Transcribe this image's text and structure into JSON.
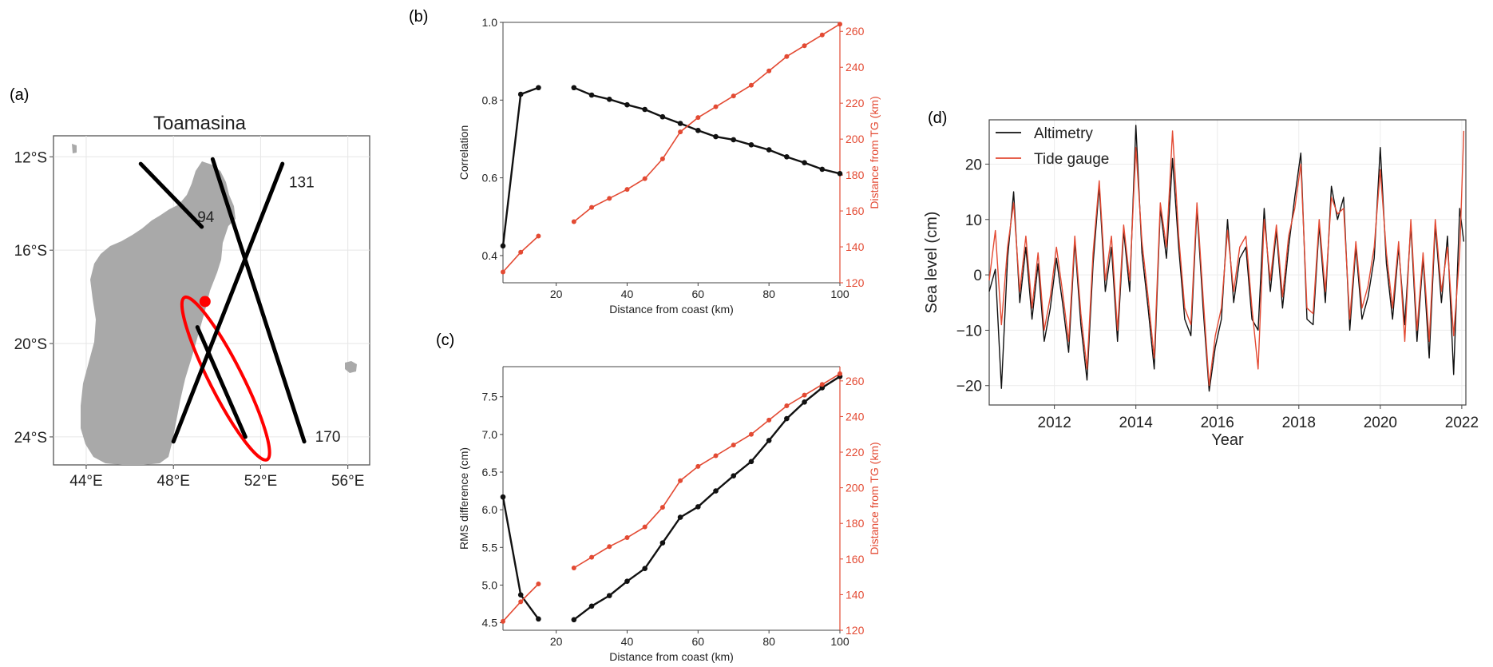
{
  "panel_labels": {
    "a": "(a)",
    "b": "(b)",
    "c": "(c)",
    "d": "(d)"
  },
  "colors": {
    "black_series": "#111111",
    "red_series": "#e34a33",
    "land": "#a9a9a9",
    "track": "#000000",
    "highlight": "#ff0000"
  },
  "chart_data": [
    {
      "panel": "(a)",
      "type": "map",
      "title": "Toamasina",
      "lon_ticks": [
        "44°E",
        "48°E",
        "52°E",
        "56°E"
      ],
      "lat_ticks": [
        "12°S",
        "16°S",
        "20°S",
        "24°S"
      ],
      "xlim_lon": [
        42.5,
        57.0
      ],
      "ylim_lat": [
        -25.2,
        -11.1
      ],
      "track_labels": [
        "94",
        "131",
        "170"
      ],
      "tracks": [
        {
          "name": "94",
          "lon": [
            46.5,
            49.3
          ],
          "lat": [
            -12.3,
            -15.0
          ]
        },
        {
          "name": "131",
          "lon": [
            53.0,
            48.0
          ],
          "lat": [
            -12.3,
            -24.2
          ]
        },
        {
          "name": "170",
          "lon": [
            49.8,
            54.0
          ],
          "lat": [
            -12.1,
            -24.2
          ]
        },
        {
          "name": "",
          "lon": [
            49.1,
            51.3
          ],
          "lat": [
            -19.3,
            -24.0
          ]
        }
      ],
      "tide_gauge": {
        "lon": 49.45,
        "lat": -18.2
      },
      "ellipse": {
        "center_lon": 50.4,
        "center_lat": -21.5,
        "length_deg": 7.8,
        "width_deg": 1.5
      }
    },
    {
      "panel": "(b)",
      "type": "line",
      "xlabel": "Distance from coast (km)",
      "ylabel": "Correlation",
      "ylabel_right": "Distance from TG (km)",
      "xlim": [
        5,
        100
      ],
      "ylim": [
        0.33,
        1.0
      ],
      "ylim_right": [
        120,
        265
      ],
      "xticks": [
        "20",
        "40",
        "60",
        "80",
        "100"
      ],
      "yticks": [
        "0.4",
        "0.6",
        "0.8",
        "1.0"
      ],
      "yticks_right": [
        "120",
        "140",
        "160",
        "180",
        "200",
        "220",
        "240",
        "260"
      ],
      "series": [
        {
          "axis": "left",
          "x": [
            5,
            10,
            15
          ],
          "values": [
            0.425,
            0.815,
            0.832
          ]
        },
        {
          "axis": "left",
          "x": [
            25,
            30,
            35,
            40,
            45,
            50,
            55,
            60,
            65,
            70,
            75,
            80,
            85,
            90,
            95,
            100
          ],
          "values": [
            0.832,
            0.813,
            0.802,
            0.788,
            0.776,
            0.757,
            0.74,
            0.722,
            0.706,
            0.698,
            0.685,
            0.672,
            0.654,
            0.639,
            0.622,
            0.611
          ]
        },
        {
          "axis": "right",
          "x": [
            5,
            10,
            15
          ],
          "values": [
            126,
            137,
            146
          ]
        },
        {
          "axis": "right",
          "x": [
            25,
            30,
            35,
            40,
            45,
            50,
            55,
            60,
            65,
            70,
            75,
            80,
            85,
            90,
            95,
            100
          ],
          "values": [
            154,
            162,
            167,
            172,
            178,
            189,
            204,
            212,
            218,
            224,
            230,
            238,
            246,
            252,
            258,
            264
          ]
        }
      ]
    },
    {
      "panel": "(c)",
      "type": "line",
      "xlabel": "Distance from coast (km)",
      "ylabel": "RMS difference (cm)",
      "ylabel_right": "Distance from TG (km)",
      "xlim": [
        5,
        100
      ],
      "ylim": [
        4.4,
        7.9
      ],
      "ylim_right": [
        120,
        268
      ],
      "xticks": [
        "20",
        "40",
        "60",
        "80",
        "100"
      ],
      "yticks": [
        "4.5",
        "5.0",
        "5.5",
        "6.0",
        "6.5",
        "7.0",
        "7.5"
      ],
      "yticks_right": [
        "120",
        "140",
        "160",
        "180",
        "200",
        "220",
        "240",
        "260"
      ],
      "series": [
        {
          "axis": "left",
          "x": [
            5,
            10,
            15
          ],
          "values": [
            6.17,
            4.87,
            4.55
          ]
        },
        {
          "axis": "left",
          "x": [
            25,
            30,
            35,
            40,
            45,
            50,
            55,
            60,
            65,
            70,
            75,
            80,
            85,
            90,
            95,
            100
          ],
          "values": [
            4.54,
            4.72,
            4.86,
            5.05,
            5.22,
            5.56,
            5.9,
            6.04,
            6.25,
            6.45,
            6.64,
            6.92,
            7.21,
            7.43,
            7.62,
            7.77
          ]
        },
        {
          "axis": "right",
          "x": [
            5,
            10,
            15
          ],
          "values": [
            125,
            136,
            146
          ]
        },
        {
          "axis": "right",
          "x": [
            25,
            30,
            35,
            40,
            45,
            50,
            55,
            60,
            65,
            70,
            75,
            80,
            85,
            90,
            95,
            100
          ],
          "values": [
            155,
            161,
            167,
            172,
            178,
            189,
            204,
            212,
            218,
            224,
            230,
            238,
            246,
            252,
            258,
            264
          ]
        }
      ]
    },
    {
      "panel": "(d)",
      "type": "line",
      "xlabel": "Year",
      "ylabel": "Sea level (cm)",
      "xlim": [
        2010.4,
        2022.1
      ],
      "ylim": [
        -23.5,
        28.0
      ],
      "xticks": [
        "2012",
        "2014",
        "2016",
        "2018",
        "2020",
        "2022"
      ],
      "yticks": [
        "−20",
        "−10",
        "0",
        "10",
        "20"
      ],
      "grid": true,
      "legend_position": "top-left",
      "series": [
        {
          "name": "Altimetry",
          "x": [
            2010.4,
            2010.55,
            2010.7,
            2010.85,
            2011.0,
            2011.15,
            2011.3,
            2011.45,
            2011.6,
            2011.75,
            2011.9,
            2012.05,
            2012.2,
            2012.35,
            2012.5,
            2012.65,
            2012.8,
            2012.95,
            2013.1,
            2013.25,
            2013.4,
            2013.55,
            2013.7,
            2013.85,
            2014.0,
            2014.15,
            2014.3,
            2014.45,
            2014.6,
            2014.75,
            2014.9,
            2015.05,
            2015.2,
            2015.35,
            2015.5,
            2015.65,
            2015.8,
            2015.95,
            2016.1,
            2016.25,
            2016.4,
            2016.55,
            2016.7,
            2016.85,
            2017.0,
            2017.15,
            2017.3,
            2017.45,
            2017.6,
            2017.75,
            2017.9,
            2018.05,
            2018.2,
            2018.35,
            2018.5,
            2018.65,
            2018.8,
            2018.95,
            2019.1,
            2019.25,
            2019.4,
            2019.55,
            2019.7,
            2019.85,
            2020.0,
            2020.15,
            2020.3,
            2020.45,
            2020.6,
            2020.75,
            2020.9,
            2021.05,
            2021.2,
            2021.35,
            2021.5,
            2021.65,
            2021.8,
            2021.95,
            2022.05
          ],
          "values": [
            -3,
            1,
            -20.5,
            3,
            15,
            -5,
            5,
            -8,
            2,
            -12,
            -6,
            3,
            -5,
            -14,
            6,
            -9,
            -19,
            2,
            16,
            -3,
            5,
            -12,
            8,
            -3,
            27,
            4,
            -6,
            -17,
            12,
            3,
            21,
            5,
            -8,
            -11,
            12,
            -6,
            -21,
            -13,
            -8,
            10,
            -5,
            3,
            5,
            -8,
            -10,
            12,
            -3,
            8,
            -6,
            5,
            14,
            22,
            -8,
            -9,
            9,
            -5,
            16,
            10,
            14,
            -10,
            5,
            -8,
            -4,
            3,
            23,
            2,
            -8,
            5,
            -9,
            9,
            -12,
            3,
            -15,
            9,
            -5,
            7,
            -18,
            12,
            6
          ]
        },
        {
          "name": "Tide gauge",
          "x": [
            2010.4,
            2010.55,
            2010.7,
            2010.85,
            2011.0,
            2011.15,
            2011.3,
            2011.45,
            2011.6,
            2011.75,
            2011.9,
            2012.05,
            2012.2,
            2012.35,
            2012.5,
            2012.65,
            2012.8,
            2012.95,
            2013.1,
            2013.25,
            2013.4,
            2013.55,
            2013.7,
            2013.85,
            2014.0,
            2014.15,
            2014.3,
            2014.45,
            2014.6,
            2014.75,
            2014.9,
            2015.05,
            2015.2,
            2015.35,
            2015.5,
            2015.65,
            2015.8,
            2015.95,
            2016.1,
            2016.25,
            2016.4,
            2016.55,
            2016.7,
            2016.85,
            2017.0,
            2017.15,
            2017.3,
            2017.45,
            2017.6,
            2017.75,
            2017.9,
            2018.05,
            2018.2,
            2018.35,
            2018.5,
            2018.65,
            2018.8,
            2018.95,
            2019.1,
            2019.25,
            2019.4,
            2019.55,
            2019.7,
            2019.85,
            2020.0,
            2020.15,
            2020.3,
            2020.45,
            2020.6,
            2020.75,
            2020.9,
            2021.05,
            2021.2,
            2021.35,
            2021.5,
            2021.65,
            2021.8,
            2021.95,
            2022.05
          ],
          "values": [
            -1,
            8,
            -9,
            5,
            13,
            -3,
            7,
            -6,
            4,
            -10,
            -4,
            5,
            -3,
            -12,
            7,
            -7,
            -17,
            4,
            17,
            -1,
            7,
            -10,
            9,
            -1,
            23,
            6,
            -4,
            -15,
            13,
            5,
            26,
            7,
            -6,
            -9,
            13,
            -4,
            -20,
            -11,
            -6,
            8,
            -3,
            5,
            7,
            -6,
            -17,
            10,
            -1,
            9,
            -4,
            7,
            12,
            20,
            -6,
            -7,
            10,
            -3,
            14,
            11,
            12,
            -8,
            6,
            -6,
            -2,
            5,
            19,
            4,
            -6,
            6,
            -12,
            10,
            -10,
            4,
            -12,
            10,
            -3,
            5,
            -11,
            4,
            26
          ]
        }
      ]
    }
  ]
}
